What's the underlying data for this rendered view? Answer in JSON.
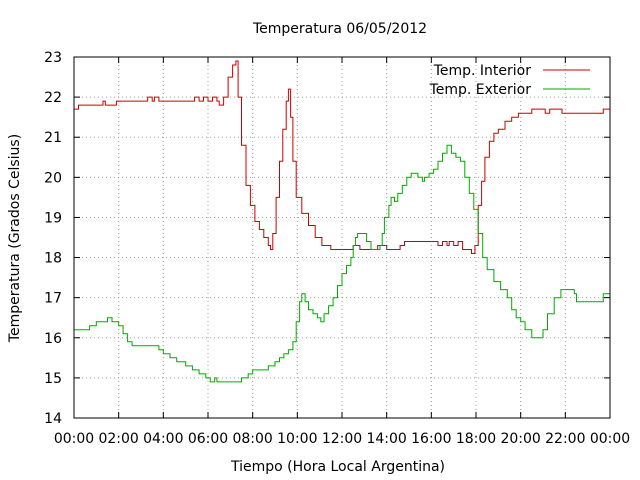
{
  "chart_data": {
    "type": "line",
    "title": "Temperatura 06/05/2012",
    "xlabel": "Tiempo (Hora Local Argentina)",
    "ylabel": "Temperatura (Grados Celsius)",
    "x_ticks": [
      "00:00",
      "02:00",
      "04:00",
      "06:00",
      "08:00",
      "10:00",
      "12:00",
      "14:00",
      "16:00",
      "18:00",
      "20:00",
      "22:00",
      "00:00"
    ],
    "y_ticks": [
      "14",
      "15",
      "16",
      "17",
      "18",
      "19",
      "20",
      "21",
      "22",
      "23"
    ],
    "xlim_hours": [
      0,
      24
    ],
    "ylim": [
      14,
      23
    ],
    "grid": true,
    "legend_position": "top-right",
    "series": [
      {
        "name": "Temp. Interior",
        "color": "#cc0000",
        "points": [
          [
            0.0,
            21.7
          ],
          [
            0.2,
            21.8
          ],
          [
            1.2,
            21.8
          ],
          [
            1.3,
            21.9
          ],
          [
            1.4,
            21.8
          ],
          [
            1.8,
            21.8
          ],
          [
            1.9,
            21.9
          ],
          [
            3.2,
            21.9
          ],
          [
            3.3,
            22.0
          ],
          [
            3.5,
            21.9
          ],
          [
            3.6,
            22.0
          ],
          [
            3.8,
            21.9
          ],
          [
            5.3,
            21.9
          ],
          [
            5.4,
            22.0
          ],
          [
            5.6,
            21.9
          ],
          [
            5.8,
            22.0
          ],
          [
            6.0,
            21.9
          ],
          [
            6.2,
            22.0
          ],
          [
            6.4,
            21.9
          ],
          [
            6.5,
            21.8
          ],
          [
            6.7,
            22.0
          ],
          [
            6.9,
            22.5
          ],
          [
            7.1,
            22.8
          ],
          [
            7.25,
            22.9
          ],
          [
            7.35,
            22.0
          ],
          [
            7.5,
            20.8
          ],
          [
            7.7,
            19.8
          ],
          [
            7.9,
            19.3
          ],
          [
            8.1,
            18.9
          ],
          [
            8.3,
            18.7
          ],
          [
            8.5,
            18.5
          ],
          [
            8.7,
            18.3
          ],
          [
            8.8,
            18.2
          ],
          [
            8.9,
            18.6
          ],
          [
            9.05,
            19.5
          ],
          [
            9.2,
            20.4
          ],
          [
            9.35,
            21.2
          ],
          [
            9.5,
            21.9
          ],
          [
            9.6,
            22.2
          ],
          [
            9.7,
            21.5
          ],
          [
            9.8,
            20.4
          ],
          [
            9.95,
            19.5
          ],
          [
            10.2,
            19.1
          ],
          [
            10.5,
            18.8
          ],
          [
            10.8,
            18.5
          ],
          [
            11.1,
            18.3
          ],
          [
            11.5,
            18.2
          ],
          [
            12.2,
            18.2
          ],
          [
            12.5,
            18.3
          ],
          [
            12.8,
            18.2
          ],
          [
            13.3,
            18.2
          ],
          [
            13.6,
            18.3
          ],
          [
            14.0,
            18.2
          ],
          [
            14.5,
            18.2
          ],
          [
            14.6,
            18.3
          ],
          [
            14.8,
            18.4
          ],
          [
            16.2,
            18.4
          ],
          [
            16.3,
            18.3
          ],
          [
            16.5,
            18.4
          ],
          [
            16.7,
            18.3
          ],
          [
            16.8,
            18.4
          ],
          [
            17.0,
            18.3
          ],
          [
            17.2,
            18.4
          ],
          [
            17.4,
            18.2
          ],
          [
            17.6,
            18.2
          ],
          [
            17.8,
            18.1
          ],
          [
            17.95,
            18.3
          ],
          [
            18.1,
            19.3
          ],
          [
            18.25,
            19.9
          ],
          [
            18.4,
            20.5
          ],
          [
            18.6,
            20.9
          ],
          [
            18.8,
            21.1
          ],
          [
            19.0,
            21.2
          ],
          [
            19.3,
            21.4
          ],
          [
            19.6,
            21.5
          ],
          [
            19.9,
            21.6
          ],
          [
            20.3,
            21.6
          ],
          [
            20.5,
            21.7
          ],
          [
            20.9,
            21.7
          ],
          [
            21.1,
            21.6
          ],
          [
            21.3,
            21.7
          ],
          [
            21.7,
            21.7
          ],
          [
            21.85,
            21.6
          ],
          [
            23.5,
            21.6
          ],
          [
            23.7,
            21.7
          ],
          [
            24.0,
            21.7
          ]
        ]
      },
      {
        "name": "Temp. Exterior",
        "color": "#00aa00",
        "points": [
          [
            0.0,
            16.2
          ],
          [
            0.5,
            16.2
          ],
          [
            0.7,
            16.3
          ],
          [
            1.0,
            16.4
          ],
          [
            1.4,
            16.4
          ],
          [
            1.5,
            16.5
          ],
          [
            1.7,
            16.4
          ],
          [
            2.0,
            16.3
          ],
          [
            2.2,
            16.1
          ],
          [
            2.4,
            15.9
          ],
          [
            2.6,
            15.8
          ],
          [
            3.0,
            15.8
          ],
          [
            3.5,
            15.8
          ],
          [
            3.8,
            15.7
          ],
          [
            4.0,
            15.6
          ],
          [
            4.3,
            15.5
          ],
          [
            4.6,
            15.4
          ],
          [
            5.0,
            15.3
          ],
          [
            5.3,
            15.2
          ],
          [
            5.6,
            15.1
          ],
          [
            5.9,
            15.0
          ],
          [
            6.1,
            14.9
          ],
          [
            6.3,
            15.0
          ],
          [
            6.4,
            14.9
          ],
          [
            7.3,
            14.9
          ],
          [
            7.5,
            15.0
          ],
          [
            7.8,
            15.1
          ],
          [
            8.0,
            15.2
          ],
          [
            8.5,
            15.2
          ],
          [
            8.7,
            15.3
          ],
          [
            9.0,
            15.4
          ],
          [
            9.2,
            15.5
          ],
          [
            9.4,
            15.6
          ],
          [
            9.6,
            15.7
          ],
          [
            9.8,
            15.9
          ],
          [
            9.95,
            16.4
          ],
          [
            10.1,
            16.9
          ],
          [
            10.2,
            17.1
          ],
          [
            10.35,
            16.9
          ],
          [
            10.5,
            16.7
          ],
          [
            10.7,
            16.6
          ],
          [
            10.9,
            16.5
          ],
          [
            11.05,
            16.4
          ],
          [
            11.2,
            16.6
          ],
          [
            11.4,
            16.8
          ],
          [
            11.6,
            17.0
          ],
          [
            11.8,
            17.3
          ],
          [
            12.0,
            17.6
          ],
          [
            12.2,
            17.8
          ],
          [
            12.4,
            18.0
          ],
          [
            12.5,
            18.3
          ],
          [
            12.6,
            18.5
          ],
          [
            12.7,
            18.6
          ],
          [
            12.9,
            18.6
          ],
          [
            13.1,
            18.4
          ],
          [
            13.3,
            18.2
          ],
          [
            13.7,
            18.3
          ],
          [
            13.8,
            18.6
          ],
          [
            13.9,
            19.0
          ],
          [
            14.1,
            19.3
          ],
          [
            14.2,
            19.5
          ],
          [
            14.35,
            19.4
          ],
          [
            14.5,
            19.6
          ],
          [
            14.7,
            19.8
          ],
          [
            14.9,
            20.0
          ],
          [
            15.1,
            20.1
          ],
          [
            15.4,
            20.0
          ],
          [
            15.6,
            19.9
          ],
          [
            15.7,
            20.0
          ],
          [
            15.9,
            20.1
          ],
          [
            16.1,
            20.2
          ],
          [
            16.3,
            20.4
          ],
          [
            16.5,
            20.6
          ],
          [
            16.7,
            20.8
          ],
          [
            16.9,
            20.6
          ],
          [
            17.1,
            20.5
          ],
          [
            17.3,
            20.4
          ],
          [
            17.5,
            20.0
          ],
          [
            17.7,
            19.6
          ],
          [
            17.9,
            19.2
          ],
          [
            18.1,
            18.6
          ],
          [
            18.3,
            18.0
          ],
          [
            18.5,
            17.7
          ],
          [
            18.8,
            17.4
          ],
          [
            19.1,
            17.2
          ],
          [
            19.4,
            17.0
          ],
          [
            19.6,
            16.7
          ],
          [
            19.8,
            16.5
          ],
          [
            20.0,
            16.4
          ],
          [
            20.2,
            16.2
          ],
          [
            20.5,
            16.0
          ],
          [
            20.8,
            16.0
          ],
          [
            21.0,
            16.2
          ],
          [
            21.2,
            16.6
          ],
          [
            21.5,
            17.0
          ],
          [
            21.8,
            17.2
          ],
          [
            22.2,
            17.2
          ],
          [
            22.4,
            17.1
          ],
          [
            22.5,
            16.9
          ],
          [
            23.5,
            16.9
          ],
          [
            23.7,
            17.1
          ],
          [
            24.0,
            17.3
          ]
        ]
      }
    ]
  }
}
